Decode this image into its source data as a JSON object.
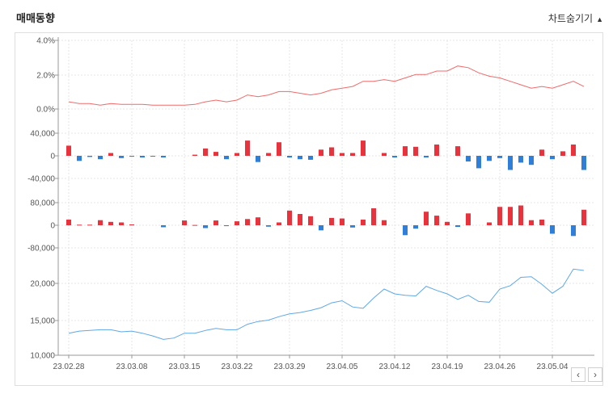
{
  "header": {
    "title": "매매동향",
    "toggle_label": "차트숨기기",
    "toggle_icon": "triangle-up-icon"
  },
  "nav": {
    "prev": "‹",
    "next": "›"
  },
  "colors": {
    "rate_line": "#f06b6b",
    "up": "#e8323c",
    "down": "#2f7fd8",
    "price_line": "#5fa8e6",
    "grid": "#e4e4e4"
  },
  "chart_data": [
    {
      "type": "line",
      "name": "rate",
      "yticks": [
        "4.0%",
        "2.0%",
        "0.0%"
      ],
      "ylim": [
        -0.4,
        4.0
      ],
      "values": [
        0.4,
        0.3,
        0.3,
        0.2,
        0.3,
        0.25,
        0.25,
        0.25,
        0.2,
        0.2,
        0.2,
        0.2,
        0.25,
        0.4,
        0.5,
        0.4,
        0.5,
        0.8,
        0.7,
        0.8,
        1.0,
        1.0,
        0.9,
        0.8,
        0.9,
        1.1,
        1.2,
        1.3,
        1.6,
        1.6,
        1.7,
        1.6,
        1.8,
        2.0,
        2.0,
        2.2,
        2.2,
        2.5,
        2.4,
        2.1,
        1.9,
        1.8,
        1.6,
        1.4,
        1.2,
        1.3,
        1.2,
        1.4,
        1.6,
        1.3
      ]
    },
    {
      "type": "bar",
      "name": "flow1",
      "yticks": [
        "40,000",
        "0",
        "-40,000"
      ],
      "ylim": [
        -40000,
        40000
      ],
      "values": [
        18000,
        -9000,
        -2000,
        -6000,
        5000,
        -4000,
        -1000,
        -3000,
        -1000,
        -3000,
        0,
        0,
        2000,
        13000,
        7000,
        -6000,
        5000,
        27000,
        -11000,
        5000,
        24000,
        -3000,
        -6000,
        -7000,
        11000,
        15000,
        5000,
        5000,
        27000,
        0,
        5000,
        -3000,
        17000,
        16000,
        -3000,
        20000,
        0,
        17000,
        -10000,
        -22000,
        -9000,
        -4000,
        -25000,
        -12000,
        -16000,
        11000,
        -6000,
        8000,
        20000,
        -25000
      ]
    },
    {
      "type": "bar",
      "name": "flow2",
      "yticks": [
        "80,000",
        "0",
        "-80,000"
      ],
      "ylim": [
        -80000,
        80000
      ],
      "values": [
        20000,
        2000,
        2000,
        18000,
        12000,
        10000,
        3000,
        0,
        0,
        -7000,
        0,
        17000,
        1000,
        -10000,
        17000,
        -3000,
        14000,
        22000,
        28000,
        -5000,
        10000,
        52000,
        40000,
        32000,
        -18000,
        26000,
        24000,
        -8000,
        20000,
        60000,
        18000,
        0,
        -35000,
        -12000,
        48000,
        34000,
        12000,
        -6000,
        42000,
        0,
        10000,
        65000,
        65000,
        70000,
        18000,
        20000,
        -30000,
        0,
        -38000,
        55000
      ]
    },
    {
      "type": "line",
      "name": "price",
      "yticks": [
        "20,000",
        "15,000",
        "10,000"
      ],
      "ylim": [
        10000,
        23000
      ],
      "xticks": [
        "23.02.28",
        "23.03.08",
        "23.03.15",
        "23.03.22",
        "23.03.29",
        "23.04.05",
        "23.04.12",
        "23.04.19",
        "23.04.26",
        "23.05.04"
      ],
      "values": [
        13200,
        13500,
        13600,
        13700,
        13700,
        13400,
        13500,
        13200,
        12800,
        12300,
        12500,
        13200,
        13200,
        13600,
        13900,
        13700,
        13700,
        14500,
        14900,
        15100,
        15600,
        16000,
        16200,
        16500,
        16900,
        17600,
        17900,
        17000,
        16800,
        18300,
        19600,
        18900,
        18700,
        18600,
        20000,
        19400,
        18900,
        18100,
        18700,
        17800,
        17700,
        19600,
        20100,
        21300,
        21400,
        20300,
        19000,
        20000,
        22500,
        22300
      ]
    }
  ]
}
